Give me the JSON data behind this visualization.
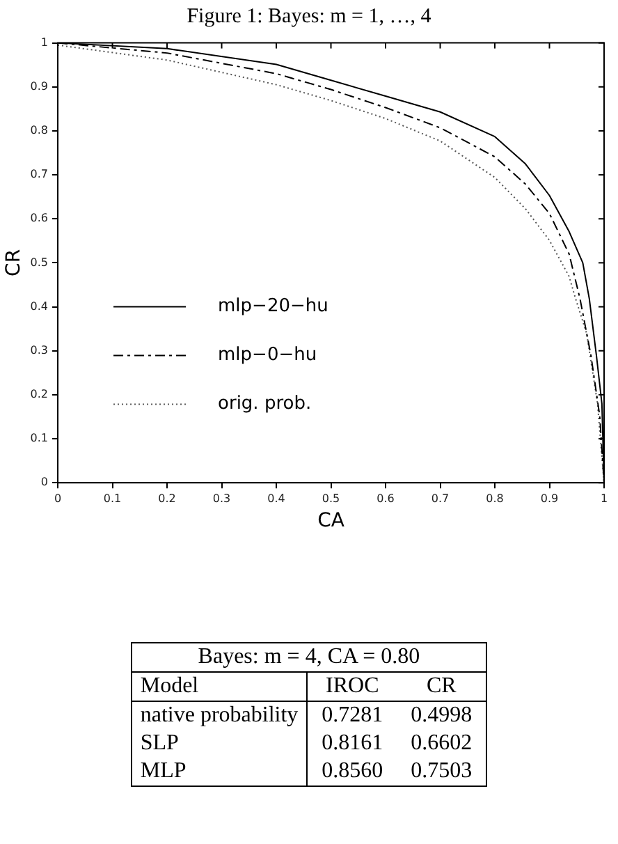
{
  "chart_data": [
    {
      "type": "line",
      "title": "Figure 1: Bayes: m = 1, …, 4",
      "xlabel": "CA",
      "ylabel": "CR",
      "xlim": [
        0,
        1
      ],
      "ylim": [
        0,
        1
      ],
      "xticks": [
        0,
        0.1,
        0.2,
        0.3,
        0.4,
        0.5,
        0.6,
        0.7,
        0.8,
        0.9,
        1
      ],
      "yticks": [
        0,
        0.1,
        0.2,
        0.3,
        0.4,
        0.5,
        0.6,
        0.7,
        0.8,
        0.9,
        1
      ],
      "grid": false,
      "legend": "left",
      "marker": "none",
      "series": [
        {
          "name": "mlp−20−hu",
          "color": "#000000",
          "line_style": "solid",
          "x": [
            0,
            0.2,
            0.4,
            0.5,
            0.6,
            0.7,
            0.8,
            0.856,
            0.9,
            0.936,
            0.961,
            0.973,
            0.986,
            0.996,
            1
          ],
          "values": [
            1,
            0.987,
            0.951,
            0.915,
            0.879,
            0.843,
            0.787,
            0.725,
            0.653,
            0.571,
            0.5,
            0.418,
            0.289,
            0.18,
            0
          ]
        },
        {
          "name": "mlp−0−hu",
          "color": "#000000",
          "line_style": "dashed",
          "x": [
            0,
            0.2,
            0.4,
            0.5,
            0.6,
            0.7,
            0.8,
            0.856,
            0.9,
            0.936,
            0.956,
            0.976,
            0.992,
            1
          ],
          "values": [
            1,
            0.977,
            0.93,
            0.894,
            0.853,
            0.807,
            0.741,
            0.679,
            0.612,
            0.52,
            0.418,
            0.289,
            0.152,
            0
          ]
        },
        {
          "name": "orig. prob.",
          "color": "#555555",
          "line_style": "dotted",
          "x": [
            0,
            0.2,
            0.4,
            0.5,
            0.6,
            0.7,
            0.8,
            0.856,
            0.9,
            0.936,
            0.948,
            0.968,
            0.988,
            1
          ],
          "values": [
            0.995,
            0.961,
            0.905,
            0.869,
            0.828,
            0.777,
            0.694,
            0.623,
            0.551,
            0.469,
            0.418,
            0.34,
            0.18,
            0
          ]
        }
      ]
    },
    {
      "type": "other",
      "title": "Bayes: m = 4, CA = 0.80",
      "categories": [
        "Model",
        "IROC",
        "CR"
      ],
      "y_categories": [
        "native probability",
        "SLP",
        "MLP"
      ],
      "cell_labels": [
        [
          "0.7281",
          "0.4998"
        ],
        [
          "0.8161",
          "0.6602"
        ],
        [
          "0.8560",
          "0.7503"
        ]
      ]
    }
  ]
}
